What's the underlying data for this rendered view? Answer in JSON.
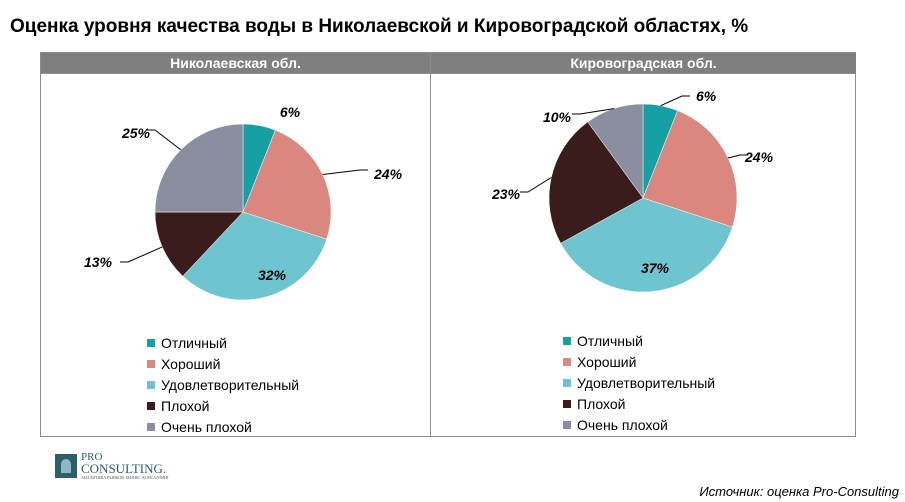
{
  "title": "Оценка уровня качества воды в Николаевской и Кировоградской областях, %",
  "source": "Источник: оценка Pro-Consulting",
  "logo": {
    "line1": "PRO",
    "line2": "CONSULTING.",
    "line3": "АНАЛИТИКА РЫНКОВ. БИЗНЕС-КОНСАЛТИНГ"
  },
  "chart_data": [
    {
      "type": "pie",
      "title": "Николаевская  обл.",
      "categories": [
        "Отличный",
        "Хороший",
        "Удовлетворительный",
        "Плохой",
        "Очень  плохой"
      ],
      "values": [
        6,
        24,
        32,
        13,
        25
      ],
      "labels": [
        "6%",
        "24%",
        "32%",
        "13%",
        "25%"
      ],
      "colors": [
        "#17a0a4",
        "#d9877f",
        "#6ec5cf",
        "#3b1c1c",
        "#8b8e9f"
      ],
      "legend": "bottom"
    },
    {
      "type": "pie",
      "title": "Кировоградская  обл.",
      "categories": [
        "Отличный",
        "Хороший",
        "Удовлетворительный",
        "Плохой",
        "Очень  плохой"
      ],
      "values": [
        6,
        24,
        37,
        23,
        10
      ],
      "labels": [
        "6%",
        "24%",
        "37%",
        "23%",
        "10%"
      ],
      "colors": [
        "#17a0a4",
        "#d9877f",
        "#6ec5cf",
        "#3b1c1c",
        "#8b8e9f"
      ],
      "legend": "bottom"
    }
  ]
}
